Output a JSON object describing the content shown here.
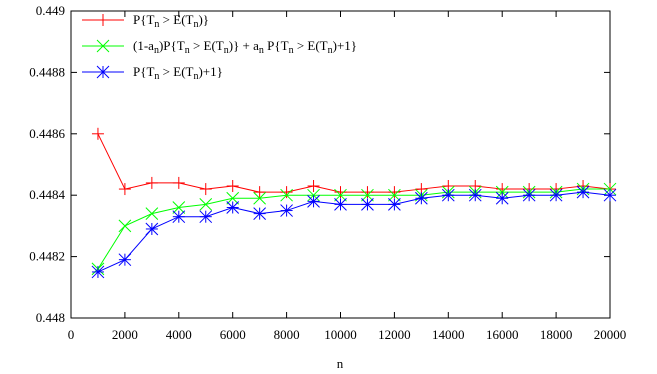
{
  "chart_data": {
    "type": "line",
    "title": "",
    "xlabel": "n",
    "ylabel": "",
    "xlim": [
      0,
      20000
    ],
    "ylim": [
      0.448,
      0.449
    ],
    "x_ticks": [
      "0",
      "2000",
      "4000",
      "6000",
      "8000",
      "10000",
      "12000",
      "14000",
      "16000",
      "18000",
      "20000"
    ],
    "y_ticks": [
      "0.448",
      "0.4482",
      "0.4484",
      "0.4486",
      "0.4488",
      "0.449"
    ],
    "grid": false,
    "legend_position": "top-left",
    "x": [
      1000,
      2000,
      3000,
      4000,
      5000,
      6000,
      7000,
      8000,
      9000,
      10000,
      11000,
      12000,
      13000,
      14000,
      15000,
      16000,
      17000,
      18000,
      19000,
      20000
    ],
    "series": [
      {
        "legend_main": "P{T",
        "legend_sub1": "n",
        "legend_mid": " > E(T",
        "legend_sub2": "n",
        "legend_end": ")}",
        "color": "#ff0000",
        "marker": "plus",
        "values": [
          0.4486,
          0.44842,
          0.44844,
          0.44844,
          0.44842,
          0.44843,
          0.44841,
          0.44841,
          0.44843,
          0.44841,
          0.44841,
          0.44841,
          0.44842,
          0.44843,
          0.44843,
          0.44842,
          0.44842,
          0.44842,
          0.44843,
          0.44842
        ]
      },
      {
        "legend_main": "(1-a",
        "legend_sub1": "n",
        "legend_mid": ")P{T",
        "legend_sub2": "n",
        "legend_rest": " > E(T",
        "legend_sub3": "n",
        "legend_rest2": ")} + a",
        "legend_sub4": "n",
        "legend_rest3": " P{T",
        "legend_sub5": "n",
        "legend_rest4": " > E(T",
        "legend_sub6": "n",
        "legend_end": ")+1}",
        "color": "#00ff00",
        "marker": "cross",
        "values": [
          0.44816,
          0.4483,
          0.44834,
          0.44836,
          0.44837,
          0.44839,
          0.44839,
          0.4484,
          0.4484,
          0.4484,
          0.4484,
          0.4484,
          0.4484,
          0.44841,
          0.44841,
          0.44841,
          0.44841,
          0.44841,
          0.44842,
          0.44842
        ]
      },
      {
        "legend_main": "P{T",
        "legend_sub1": "n",
        "legend_mid": " > E(T",
        "legend_sub2": "n",
        "legend_end": ")+1}",
        "color": "#0000ff",
        "marker": "star",
        "values": [
          0.44815,
          0.44819,
          0.44829,
          0.44833,
          0.44833,
          0.44836,
          0.44834,
          0.44835,
          0.44838,
          0.44837,
          0.44837,
          0.44837,
          0.44839,
          0.4484,
          0.4484,
          0.44839,
          0.4484,
          0.4484,
          0.44841,
          0.4484
        ]
      }
    ]
  }
}
